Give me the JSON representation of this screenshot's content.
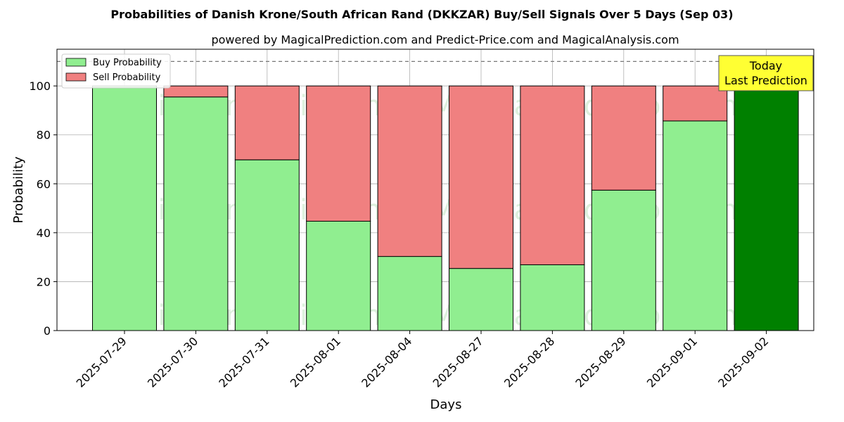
{
  "chart_data": {
    "type": "bar",
    "stacked": true,
    "title": "Probabilities of Danish Krone/South African Rand (DKKZAR) Buy/Sell Signals Over 5 Days (Sep 03)",
    "subtitle": "powered by MagicalPrediction.com and Predict-Price.com and MagicalAnalysis.com",
    "xlabel": "Days",
    "ylabel": "Probability",
    "ylim": [
      0,
      115
    ],
    "yticks": [
      0,
      20,
      40,
      60,
      80,
      100
    ],
    "reference_line": 110,
    "grid": true,
    "legend_position": "top-left",
    "categories": [
      "2025-07-29",
      "2025-07-30",
      "2025-07-31",
      "2025-08-01",
      "2025-08-04",
      "2025-08-27",
      "2025-08-28",
      "2025-08-29",
      "2025-09-01",
      "2025-09-02"
    ],
    "series": [
      {
        "name": "Buy Probability",
        "color": "#90ee90",
        "values": [
          100,
          95.5,
          69.8,
          44.7,
          30.3,
          25.4,
          26.9,
          57.4,
          85.7,
          100
        ]
      },
      {
        "name": "Sell Probability",
        "color": "#f08080",
        "values": [
          0,
          4.5,
          30.2,
          55.3,
          69.7,
          74.6,
          73.1,
          42.6,
          14.3,
          0
        ]
      }
    ],
    "highlight": {
      "category": "2025-09-02",
      "color": "#008000"
    },
    "annotation": {
      "lines": [
        "Today",
        "Last Prediction"
      ],
      "background": "#ffff33"
    },
    "watermarks": [
      "MagicalAnalysis.com",
      "MagicalPrediction.com"
    ]
  }
}
